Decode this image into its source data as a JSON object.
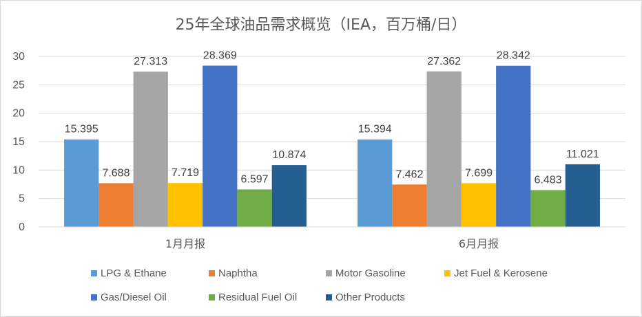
{
  "chart_data": {
    "type": "bar",
    "title": "25年全球油品需求概览（IEA，百万桶/日）",
    "categories": [
      "1月月报",
      "6月月报"
    ],
    "ylim": [
      0,
      30
    ],
    "yticks": [
      "0",
      "5",
      "10",
      "15",
      "20",
      "25",
      "30"
    ],
    "grid": true,
    "legend_position": "bottom",
    "series": [
      {
        "name": "LPG & Ethane",
        "color": "#5b9bd5",
        "values": [
          15.395,
          15.394
        ],
        "labels": [
          "15.395",
          "15.394"
        ]
      },
      {
        "name": "Naphtha",
        "color": "#ed7d31",
        "values": [
          7.688,
          7.462
        ],
        "labels": [
          "7.688",
          "7.462"
        ]
      },
      {
        "name": "Motor Gasoline",
        "color": "#a5a5a5",
        "values": [
          27.313,
          27.362
        ],
        "labels": [
          "27.313",
          "27.362"
        ]
      },
      {
        "name": "Jet Fuel & Kerosene",
        "color": "#ffc000",
        "values": [
          7.719,
          7.699
        ],
        "labels": [
          "7.719",
          "7.699"
        ]
      },
      {
        "name": "Gas/Diesel Oil",
        "color": "#4472c4",
        "values": [
          28.369,
          28.342
        ],
        "labels": [
          "28.369",
          "28.342"
        ]
      },
      {
        "name": "Residual Fuel Oil",
        "color": "#70ad47",
        "values": [
          6.597,
          6.483
        ],
        "labels": [
          "6.597",
          "6.483"
        ]
      },
      {
        "name": "Other Products",
        "color": "#255e91",
        "values": [
          10.874,
          11.021
        ],
        "labels": [
          "10.874",
          "11.021"
        ]
      }
    ]
  }
}
